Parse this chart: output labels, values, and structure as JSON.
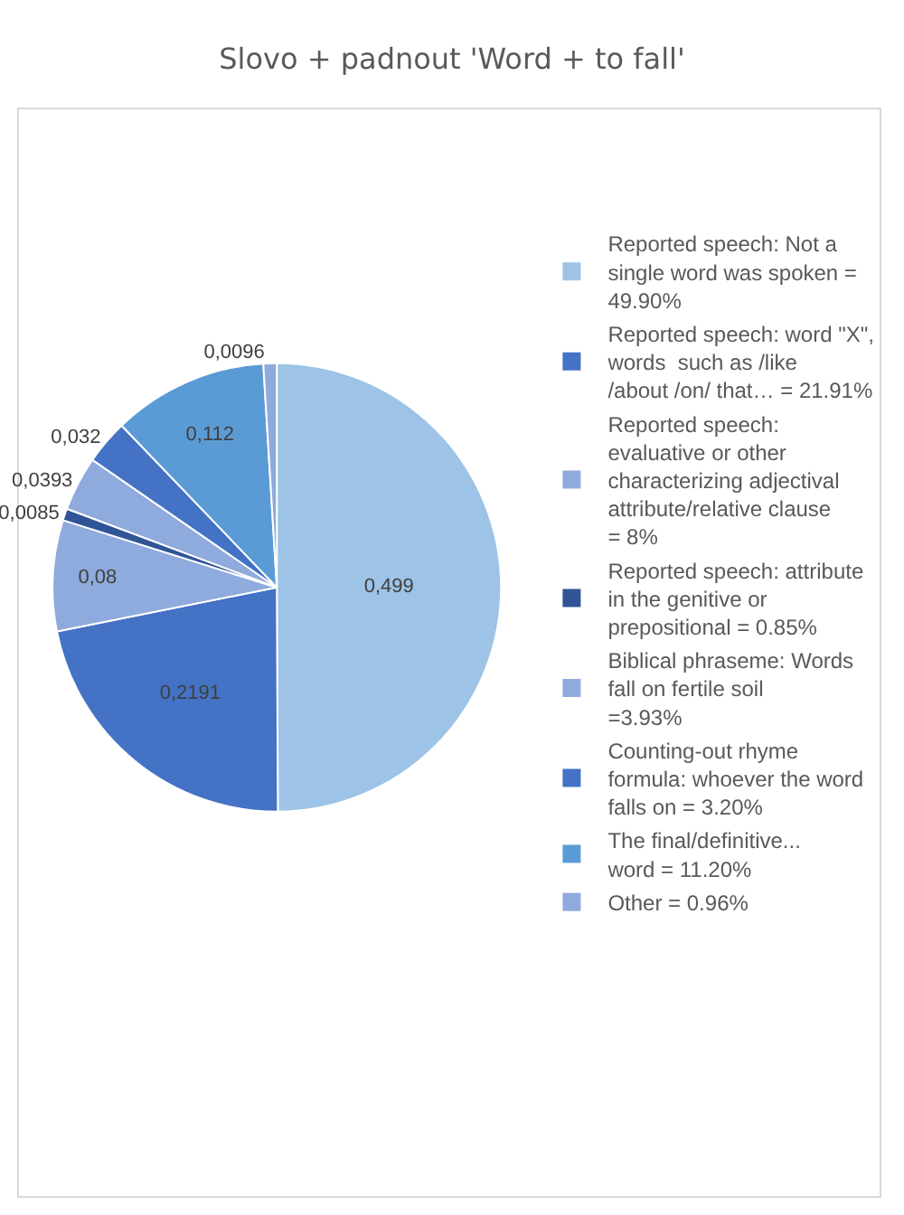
{
  "chart_data": {
    "type": "pie",
    "title": "Slovo + padnout 'Word + to fall'",
    "categories": [
      "Reported speech: Not a single word was spoken = 49.90%",
      "Reported speech: word \"X\", words  such as /like /about /on/ that… = 21.91%",
      "Reported speech: evaluative or other characterizing adjectival attribute/relative clause = 8%",
      "Reported speech: attribute in the genitive or prepositional = 0.85%",
      "Biblical phraseme: Words fall on fertile soil =3.93%",
      "Counting-out rhyme formula: whoever the word falls on = 3.20%",
      "The final/definitive... word = 11.20%",
      "Other = 0.96%"
    ],
    "values": [
      0.499,
      0.2191,
      0.08,
      0.0085,
      0.0393,
      0.032,
      0.112,
      0.0096
    ],
    "value_labels": [
      "0,499",
      "0,2191",
      "0,08",
      "0,0085",
      "0,0393",
      "0,032",
      "0,112",
      "0,0096"
    ],
    "colors": [
      "#9dc3e6",
      "#4472c4",
      "#8faadc",
      "#2f5597",
      "#8faadc",
      "#4472c4",
      "#5b9bd5",
      "#8faadc"
    ],
    "legend": "right"
  }
}
